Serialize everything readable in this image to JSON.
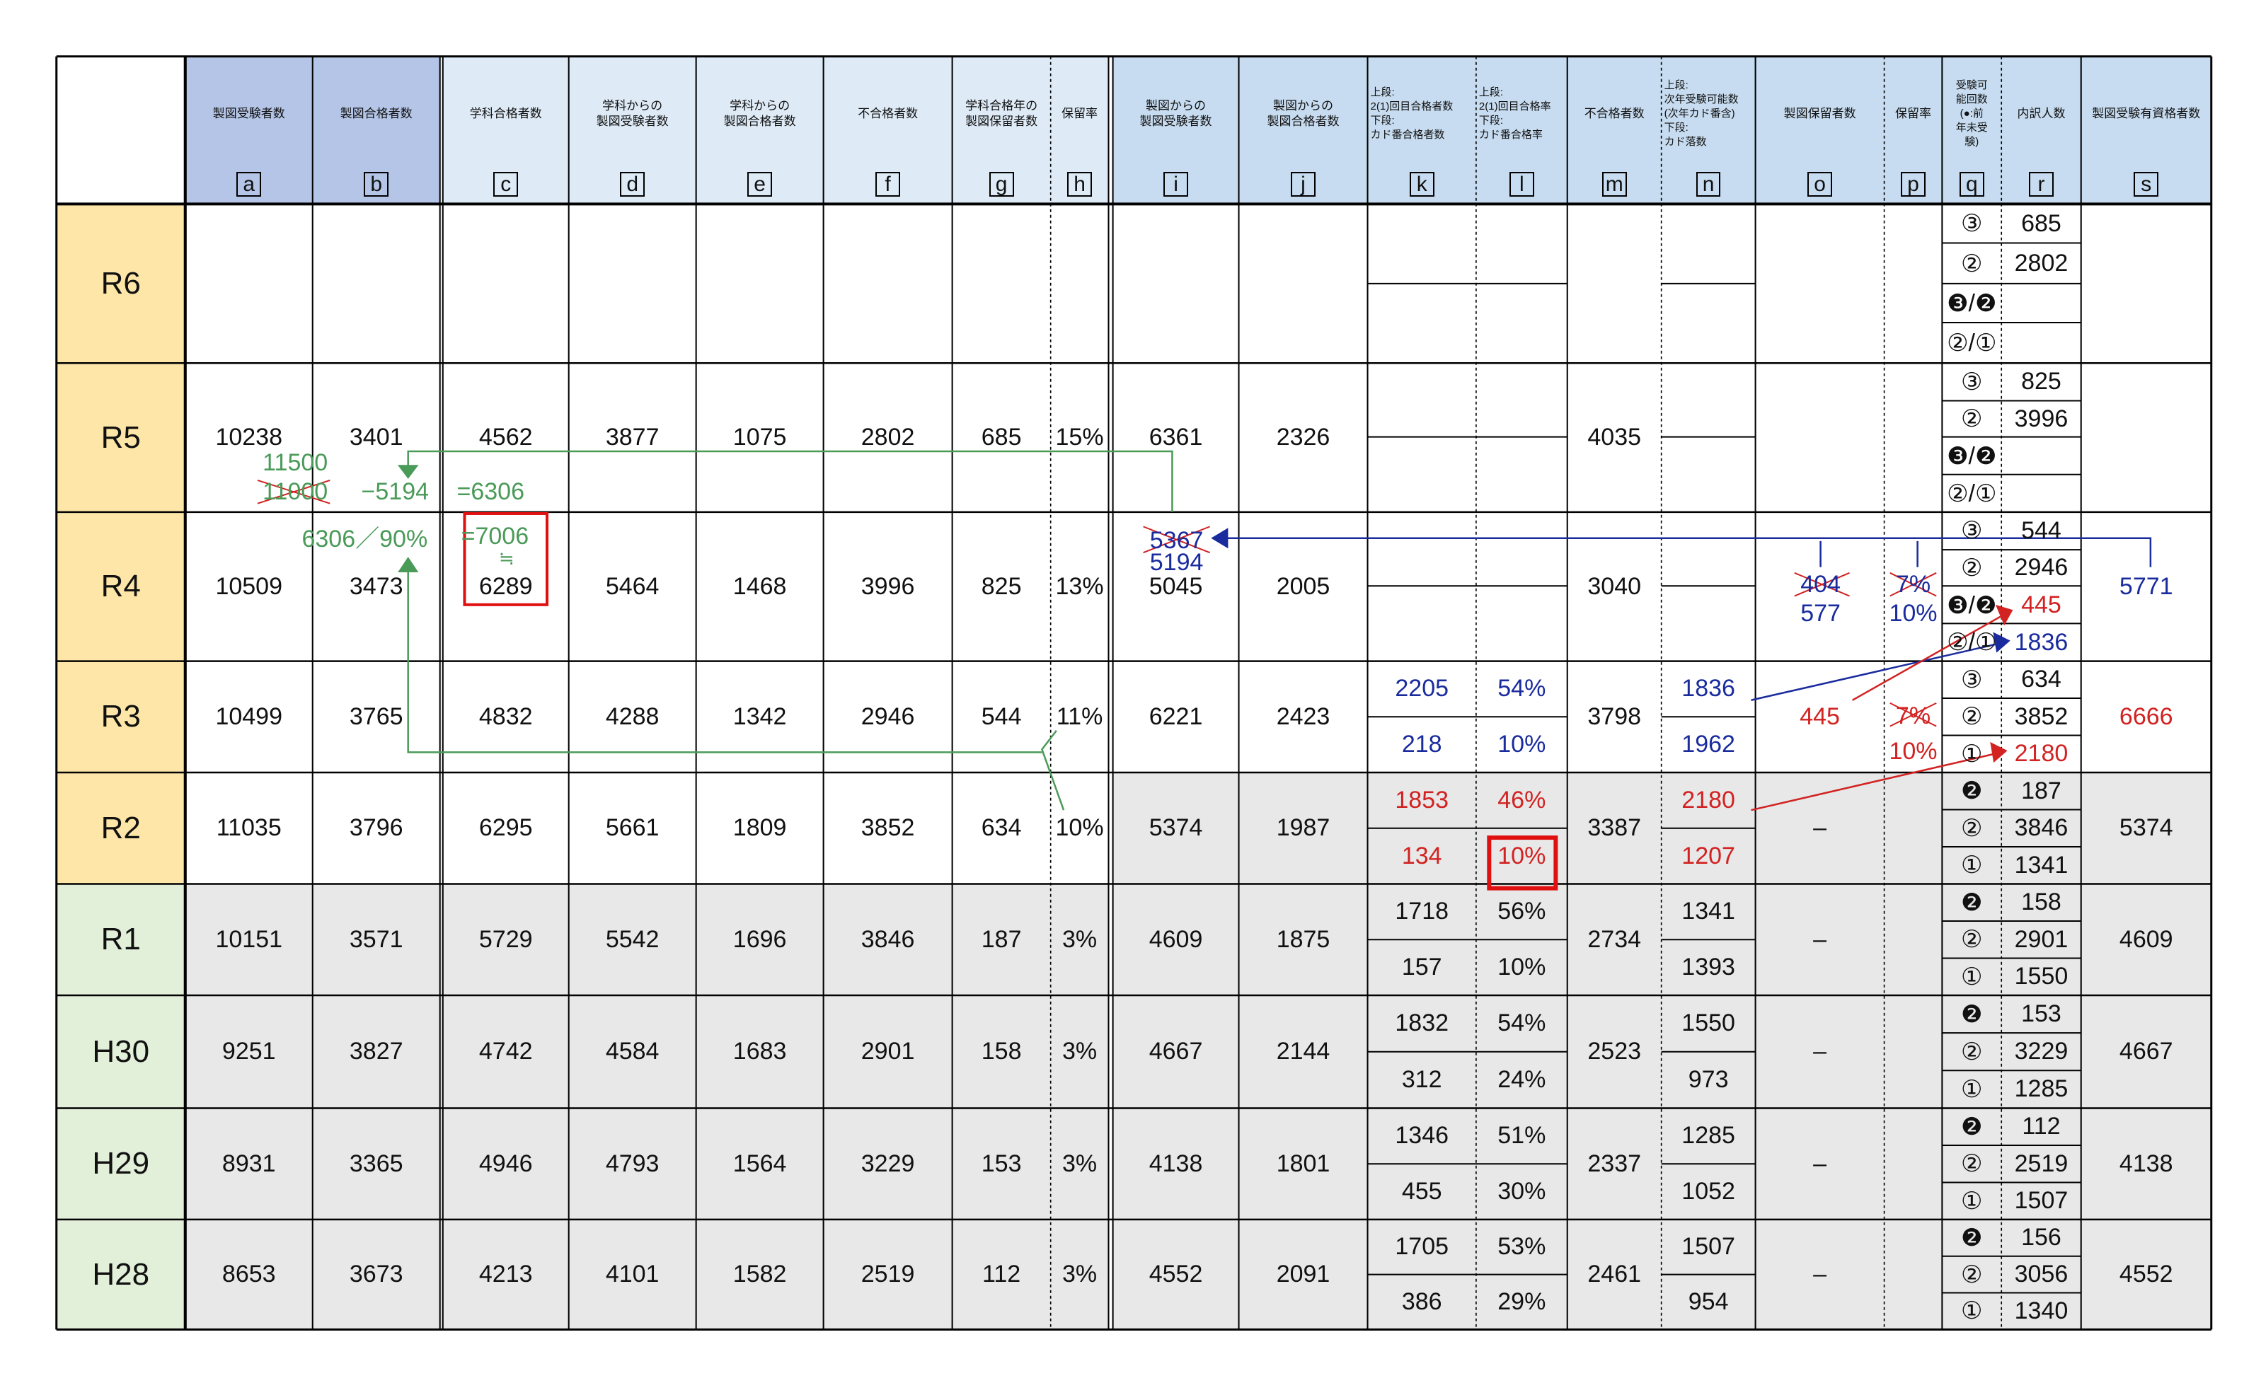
{
  "headers": [
    {
      "col": "a",
      "lines": [
        "製図受験者数"
      ]
    },
    {
      "col": "b",
      "lines": [
        "製図合格者数"
      ]
    },
    {
      "col": "c",
      "lines": [
        "学科合格者数"
      ]
    },
    {
      "col": "d",
      "lines": [
        "学科からの",
        "製図受験者数"
      ]
    },
    {
      "col": "e",
      "lines": [
        "学科からの",
        "製図合格者数"
      ]
    },
    {
      "col": "f",
      "lines": [
        "不合格者数"
      ]
    },
    {
      "col": "g",
      "lines": [
        "学科合格年の",
        "製図保留者数"
      ]
    },
    {
      "col": "h",
      "lines": [
        "保留率"
      ]
    },
    {
      "col": "i",
      "lines": [
        "製図からの",
        "製図受験者数"
      ]
    },
    {
      "col": "j",
      "lines": [
        "製図からの",
        "製図合格者数"
      ]
    },
    {
      "col": "k",
      "lines": [
        "上段:",
        "2(1)回目合格者数",
        "下段:",
        "カド番合格者数"
      ]
    },
    {
      "col": "l",
      "lines": [
        "上段:",
        "2(1)回目合格率",
        "下段:",
        "カド番合格率"
      ]
    },
    {
      "col": "m",
      "lines": [
        "不合格者数"
      ]
    },
    {
      "col": "n",
      "lines": [
        "上段:",
        "次年受験可能数",
        "(次年カド番含)",
        "下段:",
        "カド落数"
      ]
    },
    {
      "col": "o",
      "lines": [
        "製図保留者数"
      ]
    },
    {
      "col": "p",
      "lines": [
        "保留率"
      ]
    },
    {
      "col": "q",
      "lines": [
        "受験可",
        "能回数",
        "(●:前",
        "年未受",
        "験)"
      ]
    },
    {
      "col": "r",
      "lines": [
        "内訳人数"
      ]
    },
    {
      "col": "s",
      "lines": [
        "製図受験有資格者数"
      ]
    }
  ],
  "rows": [
    {
      "label": "R6",
      "a": "",
      "b": "",
      "c": "",
      "d": "",
      "e": "",
      "f": "",
      "g": "",
      "h": "",
      "i": "",
      "j": "",
      "k1": "",
      "k2": "",
      "l1": "",
      "l2": "",
      "m": "",
      "n1": "",
      "n2": "",
      "o": "",
      "p": "",
      "q": [
        "③",
        "②",
        "❸/❷",
        "②/①"
      ],
      "r": [
        "685",
        "2802",
        "",
        ""
      ],
      "s": ""
    },
    {
      "label": "R5",
      "a": "10238",
      "b": "3401",
      "c": "4562",
      "d": "3877",
      "e": "1075",
      "f": "2802",
      "g": "685",
      "h": "15%",
      "i": "6361",
      "j": "2326",
      "k1": "",
      "k2": "",
      "l1": "",
      "l2": "",
      "m": "4035",
      "n1": "",
      "n2": "",
      "o": "",
      "p": "",
      "q": [
        "③",
        "②",
        "❸/❷",
        "②/①"
      ],
      "r": [
        "825",
        "3996",
        "",
        ""
      ],
      "s": ""
    },
    {
      "label": "R4",
      "a": "10509",
      "b": "3473",
      "c": "6289",
      "d": "5464",
      "e": "1468",
      "f": "3996",
      "g": "825",
      "h": "13%",
      "i": "5045",
      "j": "2005",
      "k1": "",
      "k2": "",
      "l1": "",
      "l2": "",
      "m": "3040",
      "n1": "",
      "n2": "",
      "o": "",
      "p": "",
      "q": [
        "③",
        "②",
        "❸/❷",
        "②/①"
      ],
      "r": [
        "544",
        "2946",
        "445",
        "1836"
      ],
      "s": "5771"
    },
    {
      "label": "R3",
      "a": "10499",
      "b": "3765",
      "c": "4832",
      "d": "4288",
      "e": "1342",
      "f": "2946",
      "g": "544",
      "h": "11%",
      "i": "6221",
      "j": "2423",
      "k1": "2205",
      "k2": "218",
      "l1": "54%",
      "l2": "10%",
      "m": "3798",
      "n1": "1836",
      "n2": "1962",
      "o": "445",
      "p": "10%",
      "q": [
        "③",
        "②",
        "①"
      ],
      "r": [
        "634",
        "3852",
        "2180"
      ],
      "s": "6666"
    },
    {
      "label": "R2",
      "a": "11035",
      "b": "3796",
      "c": "6295",
      "d": "5661",
      "e": "1809",
      "f": "3852",
      "g": "634",
      "h": "10%",
      "i": "5374",
      "j": "1987",
      "k1": "1853",
      "k2": "134",
      "l1": "46%",
      "l2": "10%",
      "m": "3387",
      "n1": "2180",
      "n2": "1207",
      "o": "–",
      "p": "",
      "q": [
        "❷",
        "②",
        "①"
      ],
      "r": [
        "187",
        "3846",
        "1341"
      ],
      "s": "5374"
    },
    {
      "label": "R1",
      "a": "10151",
      "b": "3571",
      "c": "5729",
      "d": "5542",
      "e": "1696",
      "f": "3846",
      "g": "187",
      "h": "3%",
      "i": "4609",
      "j": "1875",
      "k1": "1718",
      "k2": "157",
      "l1": "56%",
      "l2": "10%",
      "m": "2734",
      "n1": "1341",
      "n2": "1393",
      "o": "–",
      "p": "",
      "q": [
        "❷",
        "②",
        "①"
      ],
      "r": [
        "158",
        "2901",
        "1550"
      ],
      "s": "4609"
    },
    {
      "label": "H30",
      "a": "9251",
      "b": "3827",
      "c": "4742",
      "d": "4584",
      "e": "1683",
      "f": "2901",
      "g": "158",
      "h": "3%",
      "i": "4667",
      "j": "2144",
      "k1": "1832",
      "k2": "312",
      "l1": "54%",
      "l2": "24%",
      "m": "2523",
      "n1": "1550",
      "n2": "973",
      "o": "–",
      "p": "",
      "q": [
        "❷",
        "②",
        "①"
      ],
      "r": [
        "153",
        "3229",
        "1285"
      ],
      "s": "4667"
    },
    {
      "label": "H29",
      "a": "8931",
      "b": "3365",
      "c": "4946",
      "d": "4793",
      "e": "1564",
      "f": "3229",
      "g": "153",
      "h": "3%",
      "i": "4138",
      "j": "1801",
      "k1": "1346",
      "k2": "455",
      "l1": "51%",
      "l2": "30%",
      "m": "2337",
      "n1": "1285",
      "n2": "1052",
      "o": "–",
      "p": "",
      "q": [
        "❷",
        "②",
        "①"
      ],
      "r": [
        "112",
        "2519",
        "1507"
      ],
      "s": "4138"
    },
    {
      "label": "H28",
      "a": "8653",
      "b": "3673",
      "c": "4213",
      "d": "4101",
      "e": "1582",
      "f": "2519",
      "g": "112",
      "h": "3%",
      "i": "4552",
      "j": "2091",
      "k1": "1705",
      "k2": "386",
      "l1": "53%",
      "l2": "29%",
      "m": "2461",
      "n1": "1507",
      "n2": "954",
      "o": "–",
      "p": "",
      "q": [
        "❷",
        "②",
        "①"
      ],
      "r": [
        "156",
        "3056",
        "1340"
      ],
      "s": "4552"
    }
  ],
  "annotations": {
    "green_11500": "11500",
    "green_11000": "11000",
    "green_minus": "−5194",
    "green_eq6306": "=6306",
    "green_6306_90": "6306／90%",
    "green_eq7006": "=7006",
    "green_approx": "≒",
    "blue_5367": "5367",
    "blue_5194": "5194",
    "blue_404": "404",
    "blue_577": "577",
    "blue_7pct": "7%",
    "blue_10pct": "10%",
    "red_7pct": "7%"
  },
  "colors": {
    "header_blue_dark": "#b4c5e7",
    "header_blue_light": "#deebf7",
    "header_blue_mid": "#c7dcf0",
    "row_yellow": "#fde6a8",
    "row_green": "#e2efd9",
    "grey": "#e8e8e8",
    "annotation_green": "#4a9a58",
    "annotation_blue": "#1a2b9e",
    "annotation_red": "#d22222"
  }
}
